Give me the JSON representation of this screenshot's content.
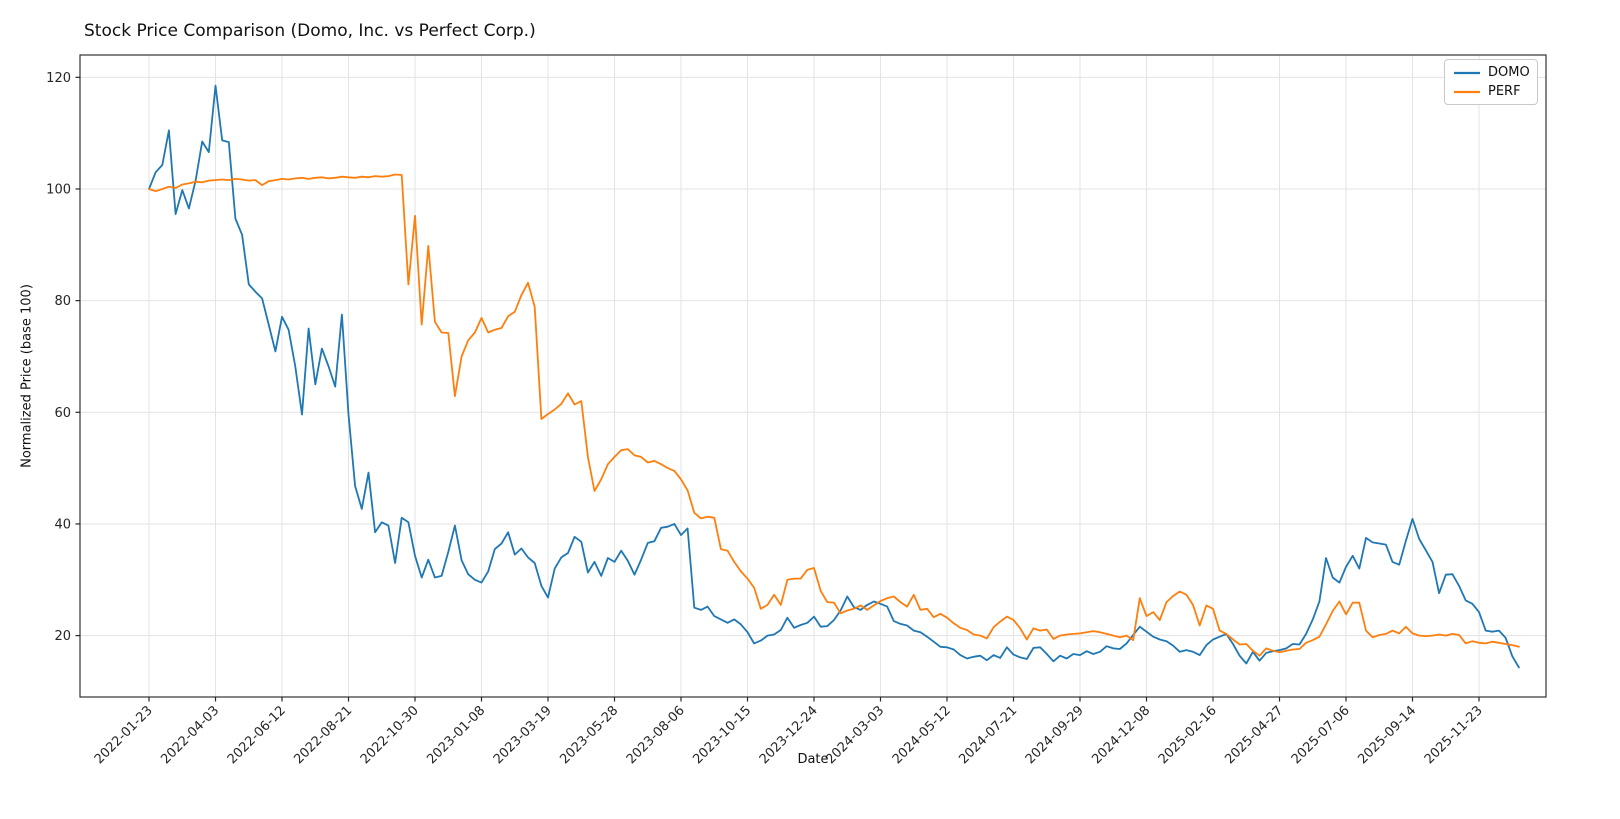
{
  "page": {
    "title": "Stock Price Comparison (Domo, Inc. vs Perfect Corp.)"
  },
  "chart_data": {
    "type": "line",
    "title": "Stock Price Comparison (Domo, Inc. vs Perfect Corp.)",
    "xlabel": "Date",
    "ylabel": "Normalized Price (base 100)",
    "grid": true,
    "legend_position": "upper right",
    "x_start_date": "2022-01-23",
    "x_step_days": 7,
    "x_tick_every_n_points": 10,
    "x_tick_labels": [
      "2022-01-23",
      "2022-04-03",
      "2022-06-12",
      "2022-08-21",
      "2022-10-30",
      "2023-01-08",
      "2023-03-19",
      "2023-05-28",
      "2023-08-06",
      "2023-10-15",
      "2023-12-24",
      "2024-03-03",
      "2024-05-12",
      "2024-07-21",
      "2024-09-29",
      "2024-12-08",
      "2025-02-16",
      "2025-04-27",
      "2025-07-06",
      "2025-09-14",
      "2025-11-23"
    ],
    "y_ticks": [
      20,
      40,
      60,
      80,
      100,
      120
    ],
    "ylim": [
      9,
      124
    ],
    "series": [
      {
        "name": "DOMO",
        "color": "#1f77b4",
        "values": [
          100,
          103,
          104.3,
          110.5,
          95.5,
          99.8,
          96.5,
          101.5,
          108.5,
          106.6,
          118.5,
          108.7,
          108.4,
          94.7,
          91.8,
          82.9,
          81.6,
          80.4,
          75.7,
          70.9,
          77.1,
          74.8,
          68.2,
          59.6,
          75,
          65,
          71.4,
          68.2,
          64.6,
          77.5,
          59.6,
          46.8,
          42.7,
          49.2,
          38.5,
          40.3,
          39.7,
          33,
          41.1,
          40.3,
          34.3,
          30.4,
          33.6,
          30.4,
          30.7,
          35,
          39.7,
          33.5,
          31,
          30,
          29.5,
          31.5,
          35.5,
          36.5,
          38.5,
          34.5,
          35.6,
          34,
          33,
          28.9,
          26.8,
          32,
          34,
          34.8,
          37.7,
          36.8,
          31.3,
          33.2,
          30.7,
          33.9,
          33.2,
          35.2,
          33.4,
          30.9,
          33.6,
          36.6,
          36.9,
          39.3,
          39.5,
          40,
          38,
          39.2,
          25,
          24.6,
          25.2,
          23.5,
          22.9,
          22.3,
          22.9,
          22,
          20.6,
          18.6,
          19.1,
          20,
          20.2,
          21,
          23.2,
          21.4,
          21.9,
          22.3,
          23.4,
          21.6,
          21.7,
          22.8,
          24.5,
          27,
          25.1,
          24.6,
          25.5,
          26.1,
          25.7,
          25.2,
          22.6,
          22.1,
          21.8,
          20.9,
          20.6,
          19.8,
          18.9,
          18,
          17.9,
          17.5,
          16.5,
          15.9,
          16.2,
          16.4,
          15.6,
          16.5,
          16,
          17.9,
          16.6,
          16.1,
          15.8,
          17.8,
          17.9,
          16.7,
          15.4,
          16.4,
          15.9,
          16.7,
          16.5,
          17.2,
          16.7,
          17.1,
          18.1,
          17.7,
          17.6,
          18.6,
          20.1,
          21.6,
          20.7,
          19.8,
          19.3,
          19,
          18.2,
          17.1,
          17.4,
          17.1,
          16.5,
          18.3,
          19.3,
          19.8,
          20.3,
          18.5,
          16.4,
          15,
          17.1,
          15.5,
          16.9,
          17.2,
          17.4,
          17.7,
          18.5,
          18.4,
          20.3,
          22.9,
          26.1,
          33.9,
          30.4,
          29.5,
          32.3,
          34.3,
          32,
          37.5,
          36.7,
          36.5,
          36.3,
          33.2,
          32.7,
          37,
          40.9,
          37.3,
          35.3,
          33.2,
          27.6,
          30.9,
          31,
          28.9,
          26.3,
          25.7,
          24.2,
          20.9,
          20.7,
          20.9,
          19.6,
          16.3,
          14.3
        ]
      },
      {
        "name": "PERF",
        "color": "#ff7f0e",
        "values": [
          100,
          99.6,
          100,
          100.4,
          100.2,
          100.8,
          101,
          101.3,
          101.2,
          101.5,
          101.6,
          101.7,
          101.6,
          101.8,
          101.7,
          101.5,
          101.6,
          100.7,
          101.4,
          101.6,
          101.8,
          101.7,
          101.9,
          102,
          101.8,
          102,
          102.1,
          101.9,
          102,
          102.2,
          102.1,
          102,
          102.2,
          102.1,
          102.3,
          102.2,
          102.3,
          102.6,
          102.5,
          82.9,
          95.2,
          75.7,
          89.8,
          76.2,
          74.3,
          74.2,
          62.9,
          70,
          72.9,
          74.3,
          76.9,
          74.3,
          74.8,
          75.1,
          77.2,
          78,
          81,
          83.2,
          78.9,
          58.8,
          59.7,
          60.5,
          61.5,
          63.4,
          61.4,
          62,
          52,
          45.9,
          48,
          50.7,
          52,
          53.2,
          53.4,
          52.3,
          52,
          51,
          51.3,
          50.7,
          50,
          49.5,
          48,
          46,
          42,
          41,
          41.3,
          41.1,
          35.5,
          35.2,
          33.2,
          31.5,
          30.2,
          28.6,
          24.8,
          25.5,
          27.3,
          25.5,
          30,
          30.2,
          30.2,
          31.8,
          32.1,
          28,
          26,
          25.9,
          24,
          24.5,
          24.8,
          25.4,
          24.6,
          25.4,
          26.2,
          26.7,
          27,
          26,
          25.2,
          27.3,
          24.6,
          24.8,
          23.3,
          23.9,
          23.2,
          22.2,
          21.4,
          21,
          20.2,
          20,
          19.5,
          21.5,
          22.5,
          23.4,
          22.8,
          21.3,
          19.3,
          21.3,
          20.9,
          21.1,
          19.4,
          20,
          20.2,
          20.3,
          20.4,
          20.6,
          20.8,
          20.6,
          20.3,
          20,
          19.7,
          20,
          19.2,
          26.7,
          23.5,
          24.2,
          22.8,
          26,
          27.1,
          27.9,
          27.3,
          25.5,
          21.8,
          25.4,
          24.8,
          20.9,
          20.3,
          19.3,
          18.4,
          18.5,
          17.3,
          16.4,
          17.7,
          17.3,
          17,
          17.3,
          17.5,
          17.6,
          18.7,
          19.2,
          19.8,
          22,
          24.4,
          26.1,
          23.8,
          25.9,
          25.9,
          20.9,
          19.7,
          20.1,
          20.3,
          20.9,
          20.4,
          21.6,
          20.4,
          20,
          19.9,
          20,
          20.2,
          20,
          20.3,
          20.1,
          18.6,
          19,
          18.7,
          18.6,
          18.9,
          18.7,
          18.5,
          18.3,
          18
        ]
      }
    ]
  }
}
